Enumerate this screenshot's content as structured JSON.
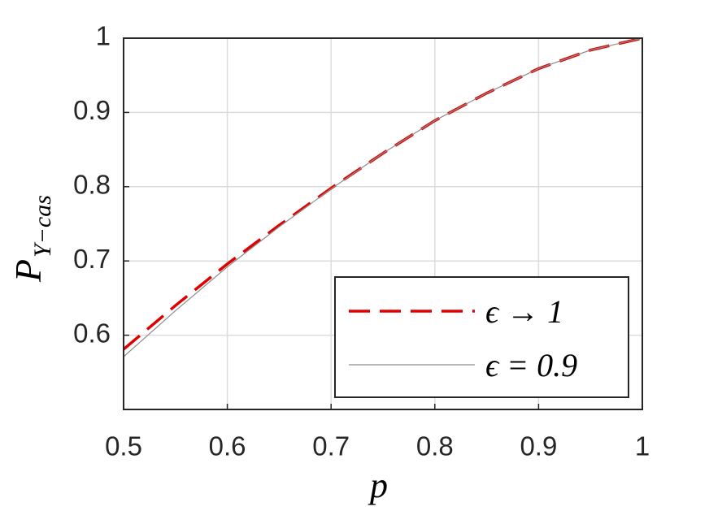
{
  "chart_data": {
    "type": "line",
    "xlabel": "p",
    "ylabel": {
      "main": "P",
      "sub": "Y−cas"
    },
    "x": [
      0.5,
      0.55,
      0.6,
      0.65,
      0.7,
      0.75,
      0.8,
      0.85,
      0.9,
      0.95,
      1.0
    ],
    "series": [
      {
        "name": "ϵ → 1",
        "color": "#e00000",
        "linestyle": "dashed",
        "values": [
          0.581,
          0.64,
          0.696,
          0.748,
          0.798,
          0.845,
          0.889,
          0.926,
          0.959,
          0.984,
          1.0
        ]
      },
      {
        "name": "ϵ = 0.9",
        "color": "#8c8c8c",
        "linestyle": "solid",
        "values": [
          0.571,
          0.633,
          0.692,
          0.746,
          0.797,
          0.845,
          0.889,
          0.926,
          0.959,
          0.984,
          1.0
        ]
      }
    ],
    "xlim": [
      0.5,
      1
    ],
    "ylim": [
      0.5,
      1
    ],
    "xticks": [
      0.5,
      0.6,
      0.7,
      0.8,
      0.9,
      1
    ],
    "yticks": [
      0.6,
      0.7,
      0.8,
      0.9,
      1
    ],
    "grid": true,
    "legend": "lower right"
  }
}
